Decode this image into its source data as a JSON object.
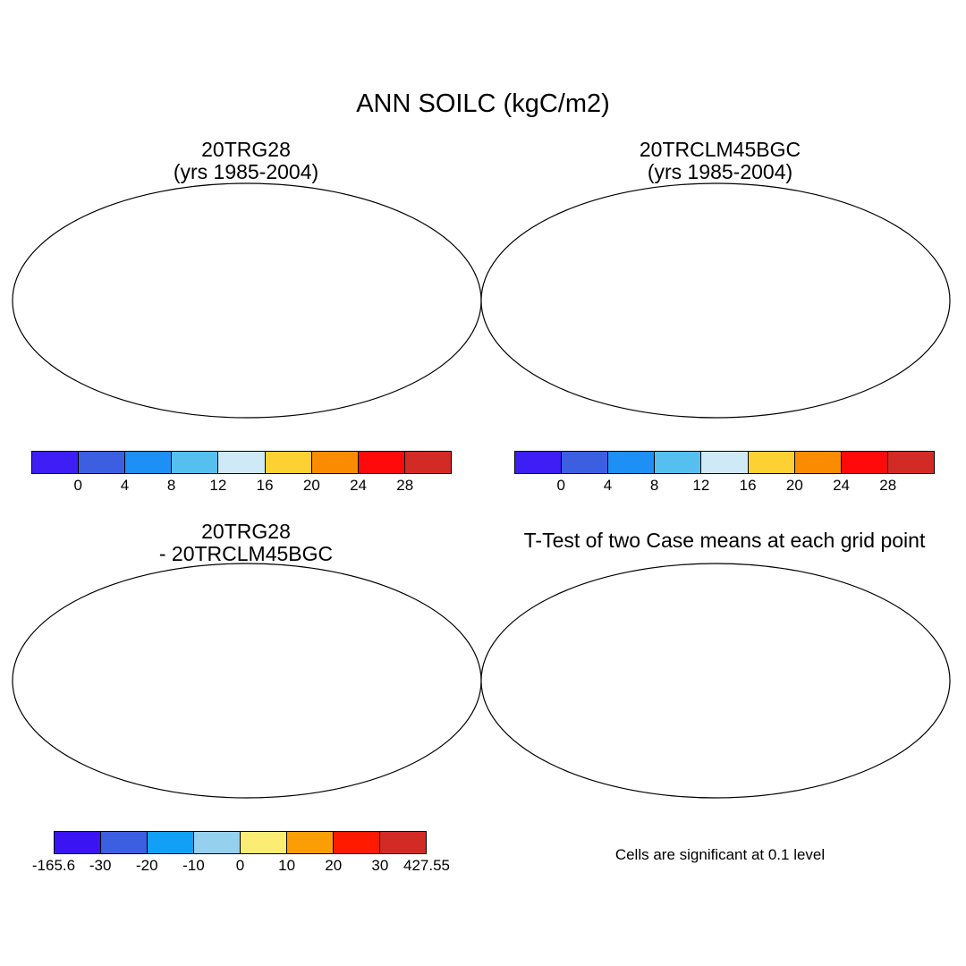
{
  "title": "ANN SOILC (kgC/m2)",
  "panels": [
    {
      "line1": "20TRG28",
      "line2": "(yrs 1985-2004)"
    },
    {
      "line1": "20TRCLM45BGC",
      "line2": "(yrs 1985-2004)"
    },
    {
      "line1": "20TRG28",
      "line2": "- 20TRCLM45BGC"
    },
    {
      "line1": "T-Test of two Case means at each grid point"
    }
  ],
  "colorbar_main": {
    "colors": [
      "#3d1ef5",
      "#3c5ee0",
      "#1e8ff5",
      "#55bff0",
      "#cfe9f7",
      "#fdd033",
      "#fb8b00",
      "#ff0a0a",
      "#d22a24"
    ],
    "labels": [
      "0",
      "4",
      "8",
      "12",
      "16",
      "20",
      "24",
      "28"
    ]
  },
  "colorbar_diff": {
    "colors": [
      "#3a14f2",
      "#3c5ee0",
      "#11a0f5",
      "#95d0ee",
      "#fbec73",
      "#fb9e05",
      "#ff1a00",
      "#d22a24"
    ],
    "labels": [
      "-165.6",
      "-30",
      "-20",
      "-10",
      "0",
      "10",
      "20",
      "30",
      "427.55"
    ]
  },
  "ttest_note": "Cells are significant at 0.1 level"
}
